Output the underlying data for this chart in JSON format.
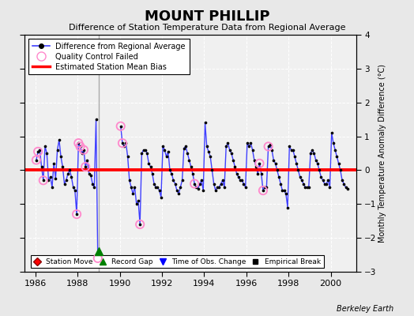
{
  "title": "MOUNT PHILLIP",
  "subtitle": "Difference of Station Temperature Data from Regional Average",
  "ylabel_right": "Monthly Temperature Anomaly Difference (°C)",
  "credit": "Berkeley Earth",
  "xlim": [
    1985.5,
    2001.2
  ],
  "ylim": [
    -3.0,
    4.0
  ],
  "yticks": [
    -3,
    -2,
    -1,
    0,
    1,
    2,
    3,
    4
  ],
  "xticks": [
    1986,
    1988,
    1990,
    1992,
    1994,
    1996,
    1998,
    2000
  ],
  "bias": 0.0,
  "record_gap_x": 1989.0,
  "record_gap_marker_y": -2.4,
  "bg_color": "#e8e8e8",
  "plot_bg_color": "#f0f0f0",
  "line_color": "#4040ff",
  "dot_color": "#000000",
  "bias_color": "#ff0000",
  "qc_color": "#ff88cc",
  "gap_line_color": "#aaaaaa",
  "time_series": [
    [
      1986.042,
      0.3
    ],
    [
      1986.125,
      0.55
    ],
    [
      1986.208,
      0.6
    ],
    [
      1986.292,
      0.1
    ],
    [
      1986.375,
      -0.3
    ],
    [
      1986.458,
      0.7
    ],
    [
      1986.542,
      0.5
    ],
    [
      1986.625,
      -0.3
    ],
    [
      1986.708,
      -0.2
    ],
    [
      1986.792,
      -0.5
    ],
    [
      1986.875,
      0.2
    ],
    [
      1986.958,
      -0.25
    ],
    [
      1987.042,
      0.6
    ],
    [
      1987.125,
      0.9
    ],
    [
      1987.208,
      0.4
    ],
    [
      1987.292,
      0.1
    ],
    [
      1987.375,
      -0.4
    ],
    [
      1987.458,
      -0.3
    ],
    [
      1987.542,
      -0.1
    ],
    [
      1987.625,
      0.0
    ],
    [
      1987.708,
      -0.2
    ],
    [
      1987.792,
      -0.5
    ],
    [
      1987.875,
      -0.6
    ],
    [
      1987.958,
      -1.3
    ],
    [
      1988.042,
      0.8
    ],
    [
      1988.125,
      0.7
    ],
    [
      1988.208,
      0.5
    ],
    [
      1988.292,
      0.6
    ],
    [
      1988.375,
      0.1
    ],
    [
      1988.458,
      0.3
    ],
    [
      1988.542,
      -0.1
    ],
    [
      1988.625,
      -0.15
    ],
    [
      1988.708,
      -0.4
    ],
    [
      1988.792,
      -0.5
    ],
    [
      1988.875,
      1.5
    ],
    [
      1988.958,
      -2.6
    ],
    [
      1990.042,
      1.3
    ],
    [
      1990.125,
      0.8
    ],
    [
      1990.208,
      0.7
    ],
    [
      1990.292,
      0.8
    ],
    [
      1990.375,
      0.4
    ],
    [
      1990.458,
      -0.3
    ],
    [
      1990.542,
      -0.5
    ],
    [
      1990.625,
      -0.7
    ],
    [
      1990.708,
      -0.5
    ],
    [
      1990.792,
      -1.0
    ],
    [
      1990.875,
      -0.9
    ],
    [
      1990.958,
      -1.6
    ],
    [
      1991.042,
      0.5
    ],
    [
      1991.125,
      0.6
    ],
    [
      1991.208,
      0.6
    ],
    [
      1991.292,
      0.5
    ],
    [
      1991.375,
      0.2
    ],
    [
      1991.458,
      0.1
    ],
    [
      1991.542,
      -0.1
    ],
    [
      1991.625,
      -0.4
    ],
    [
      1991.708,
      -0.5
    ],
    [
      1991.792,
      -0.5
    ],
    [
      1991.875,
      -0.6
    ],
    [
      1991.958,
      -0.8
    ],
    [
      1992.042,
      0.7
    ],
    [
      1992.125,
      0.6
    ],
    [
      1992.208,
      0.4
    ],
    [
      1992.292,
      0.55
    ],
    [
      1992.375,
      0.0
    ],
    [
      1992.458,
      -0.1
    ],
    [
      1992.542,
      -0.3
    ],
    [
      1992.625,
      -0.4
    ],
    [
      1992.708,
      -0.6
    ],
    [
      1992.792,
      -0.7
    ],
    [
      1992.875,
      -0.5
    ],
    [
      1992.958,
      -0.3
    ],
    [
      1993.042,
      0.65
    ],
    [
      1993.125,
      0.7
    ],
    [
      1993.208,
      0.5
    ],
    [
      1993.292,
      0.3
    ],
    [
      1993.375,
      0.1
    ],
    [
      1993.458,
      -0.1
    ],
    [
      1993.542,
      -0.4
    ],
    [
      1993.625,
      -0.5
    ],
    [
      1993.708,
      -0.55
    ],
    [
      1993.792,
      -0.4
    ],
    [
      1993.875,
      -0.3
    ],
    [
      1993.958,
      -0.6
    ],
    [
      1994.042,
      1.4
    ],
    [
      1994.125,
      0.7
    ],
    [
      1994.208,
      0.55
    ],
    [
      1994.292,
      0.4
    ],
    [
      1994.375,
      0.0
    ],
    [
      1994.458,
      -0.4
    ],
    [
      1994.542,
      -0.6
    ],
    [
      1994.625,
      -0.5
    ],
    [
      1994.708,
      -0.5
    ],
    [
      1994.792,
      -0.4
    ],
    [
      1994.875,
      -0.3
    ],
    [
      1994.958,
      -0.5
    ],
    [
      1995.042,
      0.7
    ],
    [
      1995.125,
      0.8
    ],
    [
      1995.208,
      0.6
    ],
    [
      1995.292,
      0.5
    ],
    [
      1995.375,
      0.3
    ],
    [
      1995.458,
      0.1
    ],
    [
      1995.542,
      -0.1
    ],
    [
      1995.625,
      -0.2
    ],
    [
      1995.708,
      -0.3
    ],
    [
      1995.792,
      -0.3
    ],
    [
      1995.875,
      -0.4
    ],
    [
      1995.958,
      -0.5
    ],
    [
      1996.042,
      0.8
    ],
    [
      1996.125,
      0.7
    ],
    [
      1996.208,
      0.8
    ],
    [
      1996.292,
      0.6
    ],
    [
      1996.375,
      0.3
    ],
    [
      1996.458,
      0.1
    ],
    [
      1996.542,
      -0.1
    ],
    [
      1996.625,
      0.2
    ],
    [
      1996.708,
      -0.1
    ],
    [
      1996.792,
      -0.6
    ],
    [
      1996.875,
      -0.5
    ],
    [
      1996.958,
      -0.5
    ],
    [
      1997.042,
      0.7
    ],
    [
      1997.125,
      0.75
    ],
    [
      1997.208,
      0.6
    ],
    [
      1997.292,
      0.3
    ],
    [
      1997.375,
      0.2
    ],
    [
      1997.458,
      0.0
    ],
    [
      1997.542,
      -0.2
    ],
    [
      1997.625,
      -0.4
    ],
    [
      1997.708,
      -0.6
    ],
    [
      1997.792,
      -0.6
    ],
    [
      1997.875,
      -0.7
    ],
    [
      1997.958,
      -1.1
    ],
    [
      1998.042,
      0.7
    ],
    [
      1998.125,
      0.6
    ],
    [
      1998.208,
      0.6
    ],
    [
      1998.292,
      0.4
    ],
    [
      1998.375,
      0.2
    ],
    [
      1998.458,
      0.0
    ],
    [
      1998.542,
      -0.2
    ],
    [
      1998.625,
      -0.3
    ],
    [
      1998.708,
      -0.4
    ],
    [
      1998.792,
      -0.5
    ],
    [
      1998.875,
      -0.5
    ],
    [
      1998.958,
      -0.5
    ],
    [
      1999.042,
      0.5
    ],
    [
      1999.125,
      0.6
    ],
    [
      1999.208,
      0.5
    ],
    [
      1999.292,
      0.3
    ],
    [
      1999.375,
      0.2
    ],
    [
      1999.458,
      0.0
    ],
    [
      1999.542,
      -0.2
    ],
    [
      1999.625,
      -0.3
    ],
    [
      1999.708,
      -0.4
    ],
    [
      1999.792,
      -0.4
    ],
    [
      1999.875,
      -0.3
    ],
    [
      1999.958,
      -0.5
    ],
    [
      2000.042,
      1.1
    ],
    [
      2000.125,
      0.8
    ],
    [
      2000.208,
      0.6
    ],
    [
      2000.292,
      0.4
    ],
    [
      2000.375,
      0.2
    ],
    [
      2000.458,
      0.0
    ],
    [
      2000.542,
      -0.3
    ],
    [
      2000.625,
      -0.4
    ],
    [
      2000.708,
      -0.5
    ],
    [
      2000.792,
      -0.55
    ]
  ],
  "qc_failed_indices": [
    [
      1986.042,
      0.3
    ],
    [
      1986.125,
      0.55
    ],
    [
      1986.375,
      -0.3
    ],
    [
      1987.958,
      -1.3
    ],
    [
      1988.042,
      0.8
    ],
    [
      1988.125,
      0.7
    ],
    [
      1988.292,
      0.6
    ],
    [
      1988.375,
      0.1
    ],
    [
      1988.958,
      -2.6
    ],
    [
      1990.042,
      1.3
    ],
    [
      1990.125,
      0.8
    ],
    [
      1990.958,
      -1.6
    ],
    [
      1993.542,
      -0.4
    ],
    [
      1996.625,
      0.2
    ],
    [
      1996.792,
      -0.6
    ],
    [
      1997.042,
      0.7
    ]
  ]
}
